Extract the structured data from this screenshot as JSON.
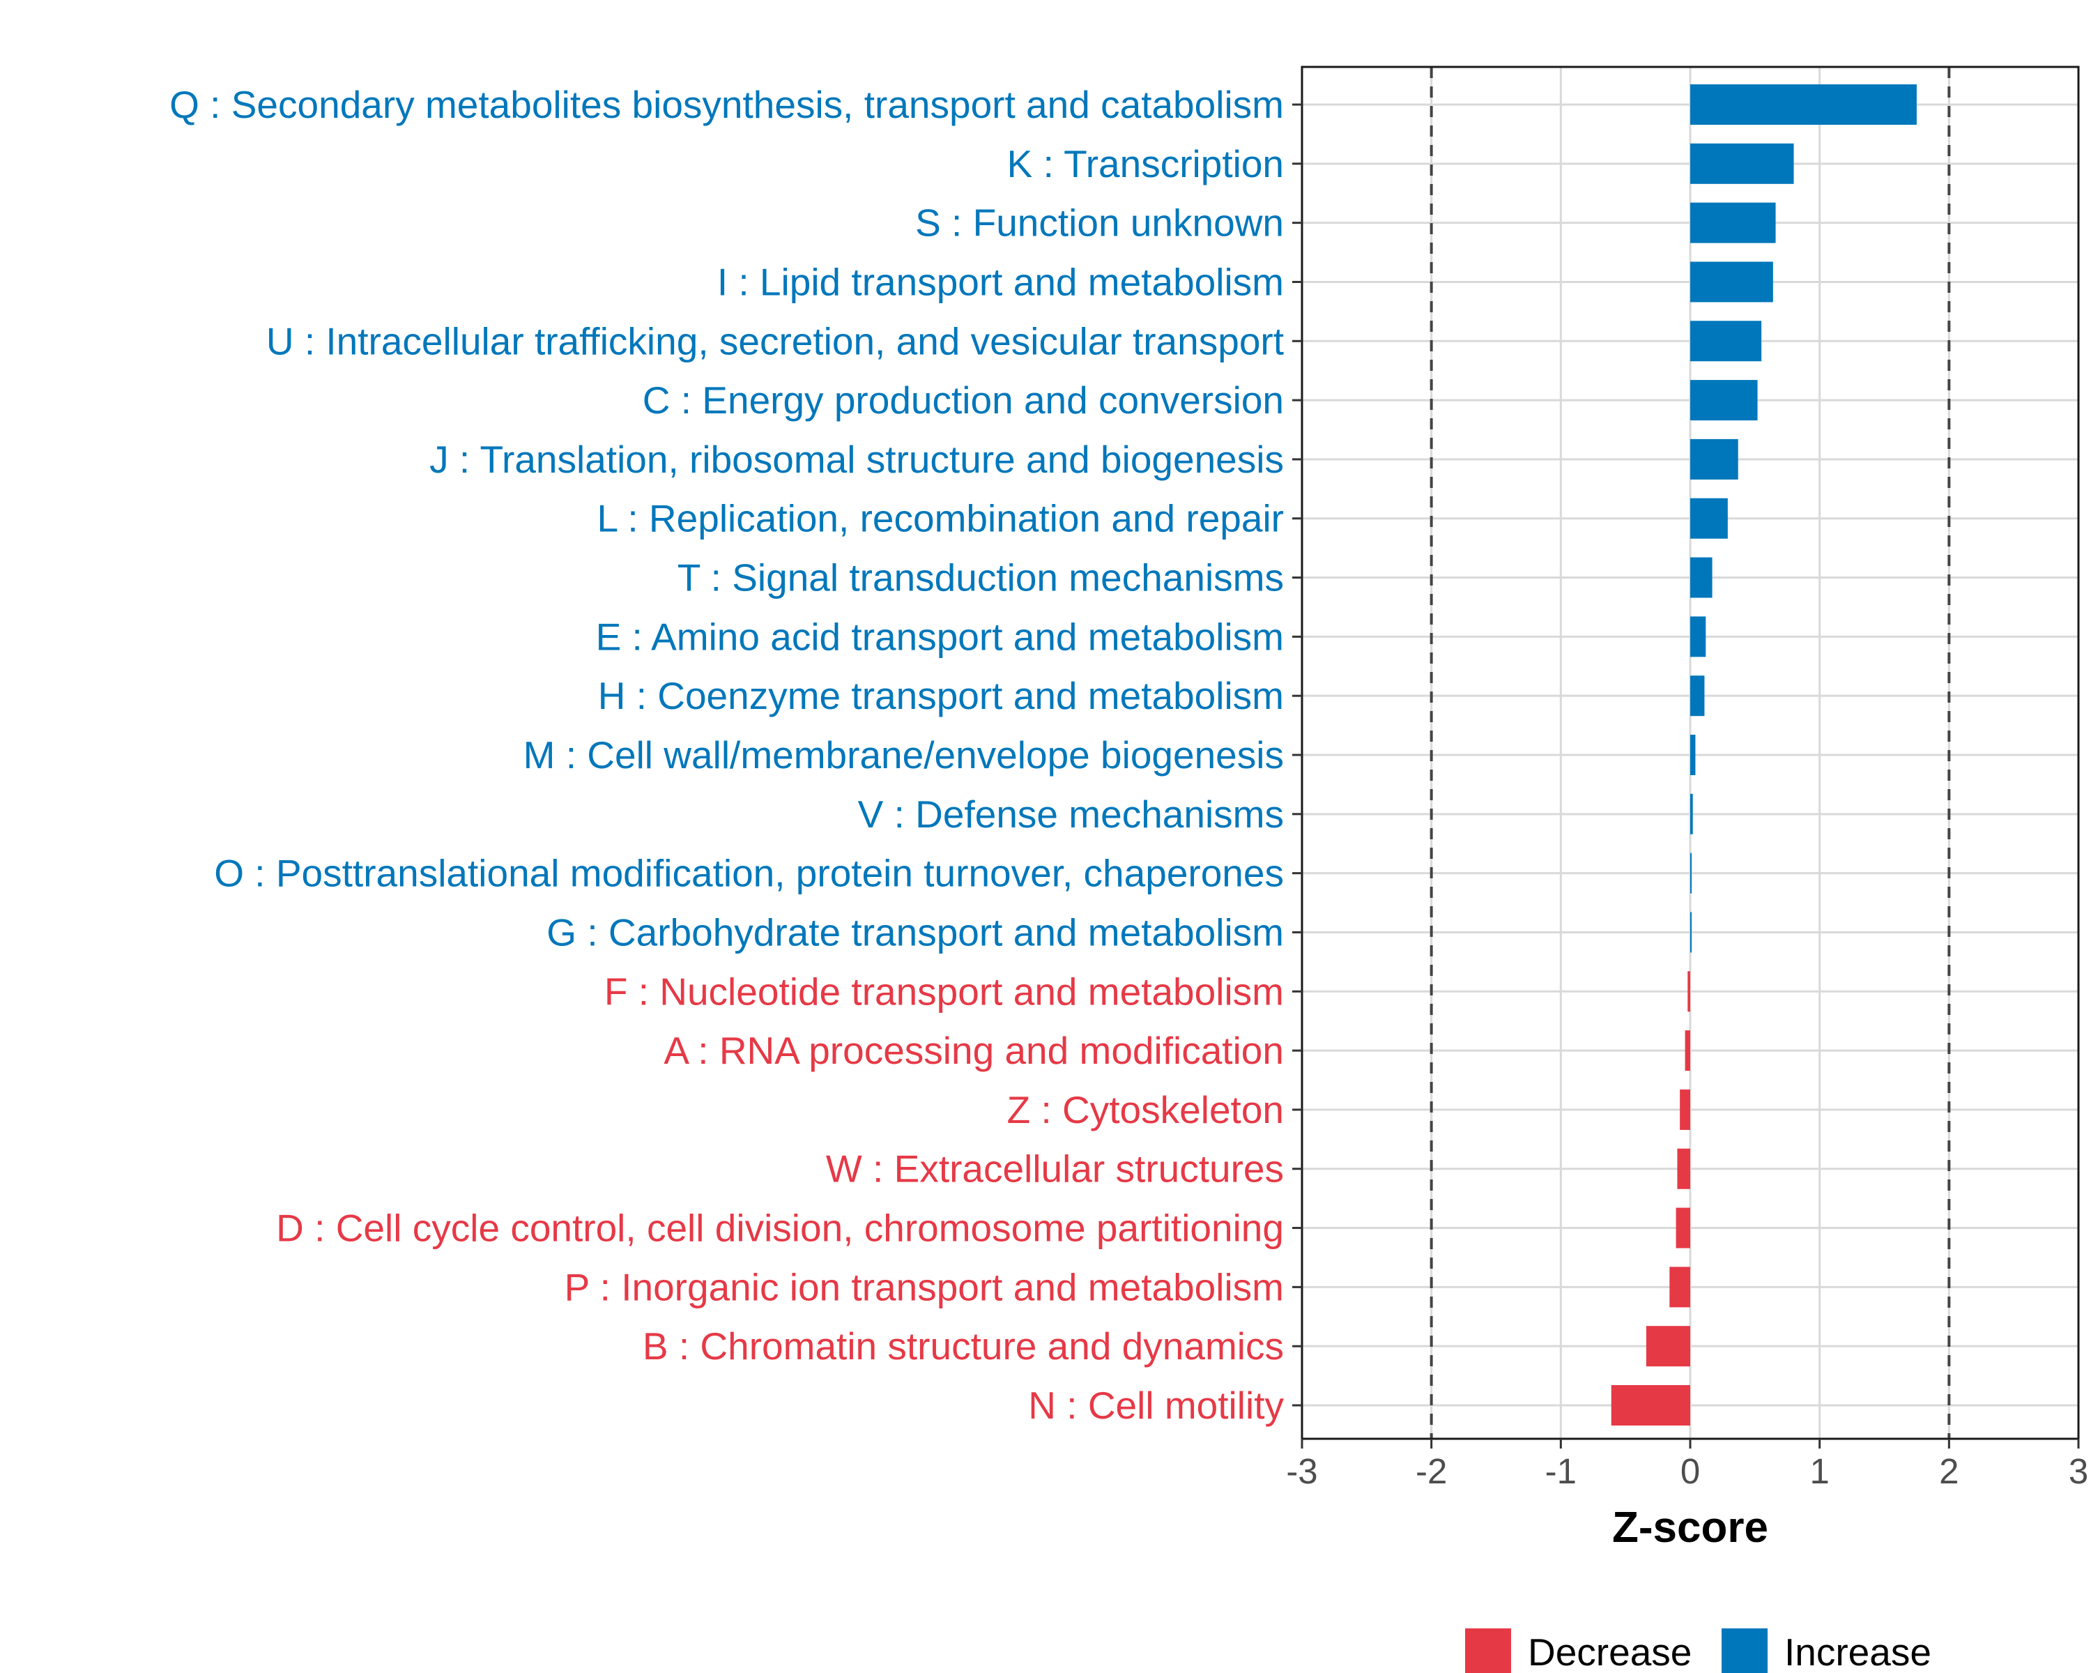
{
  "chart_data": {
    "type": "bar",
    "orientation": "horizontal",
    "xlabel": "Z-score",
    "ylabel": "",
    "xlim": [
      -3,
      3
    ],
    "xticks": [
      "-3",
      "-2",
      "-1",
      "0",
      "1",
      "2",
      "3"
    ],
    "reference_lines": [
      -2,
      2
    ],
    "grid": true,
    "colors": {
      "Decrease": "#e63946",
      "Increase": "#0077bb"
    },
    "legend": {
      "position": "bottom",
      "items": [
        {
          "name": "Decrease",
          "color": "#e63946"
        },
        {
          "name": "Increase",
          "color": "#0077bb"
        }
      ]
    },
    "bars": [
      {
        "label": "Q : Secondary metabolites biosynthesis, transport and catabolism",
        "value": 1.75,
        "group": "Increase"
      },
      {
        "label": "K : Transcription",
        "value": 0.8,
        "group": "Increase"
      },
      {
        "label": "S : Function unknown",
        "value": 0.66,
        "group": "Increase"
      },
      {
        "label": "I : Lipid transport and metabolism",
        "value": 0.64,
        "group": "Increase"
      },
      {
        "label": "U : Intracellular trafficking, secretion, and vesicular transport",
        "value": 0.55,
        "group": "Increase"
      },
      {
        "label": "C : Energy production and conversion",
        "value": 0.52,
        "group": "Increase"
      },
      {
        "label": "J : Translation, ribosomal structure and biogenesis",
        "value": 0.37,
        "group": "Increase"
      },
      {
        "label": "L : Replication, recombination and repair",
        "value": 0.29,
        "group": "Increase"
      },
      {
        "label": "T : Signal transduction mechanisms",
        "value": 0.17,
        "group": "Increase"
      },
      {
        "label": "E : Amino acid transport and metabolism",
        "value": 0.12,
        "group": "Increase"
      },
      {
        "label": "H : Coenzyme transport and metabolism",
        "value": 0.11,
        "group": "Increase"
      },
      {
        "label": "M : Cell wall/membrane/envelope biogenesis",
        "value": 0.04,
        "group": "Increase"
      },
      {
        "label": "V : Defense mechanisms",
        "value": 0.02,
        "group": "Increase"
      },
      {
        "label": "O : Posttranslational modification, protein turnover, chaperones",
        "value": 0.01,
        "group": "Increase"
      },
      {
        "label": "G : Carbohydrate transport and metabolism",
        "value": 0.0,
        "group": "Increase"
      },
      {
        "label": "F : Nucleotide transport and metabolism",
        "value": -0.02,
        "group": "Decrease"
      },
      {
        "label": "A : RNA processing and modification",
        "value": -0.04,
        "group": "Decrease"
      },
      {
        "label": "Z : Cytoskeleton",
        "value": -0.08,
        "group": "Decrease"
      },
      {
        "label": "W : Extracellular structures",
        "value": -0.1,
        "group": "Decrease"
      },
      {
        "label": "D : Cell cycle control, cell division, chromosome partitioning",
        "value": -0.11,
        "group": "Decrease"
      },
      {
        "label": "P : Inorganic ion transport and metabolism",
        "value": -0.16,
        "group": "Decrease"
      },
      {
        "label": "B : Chromatin structure and dynamics",
        "value": -0.34,
        "group": "Decrease"
      },
      {
        "label": "N : Cell motility",
        "value": -0.61,
        "group": "Decrease"
      }
    ]
  }
}
